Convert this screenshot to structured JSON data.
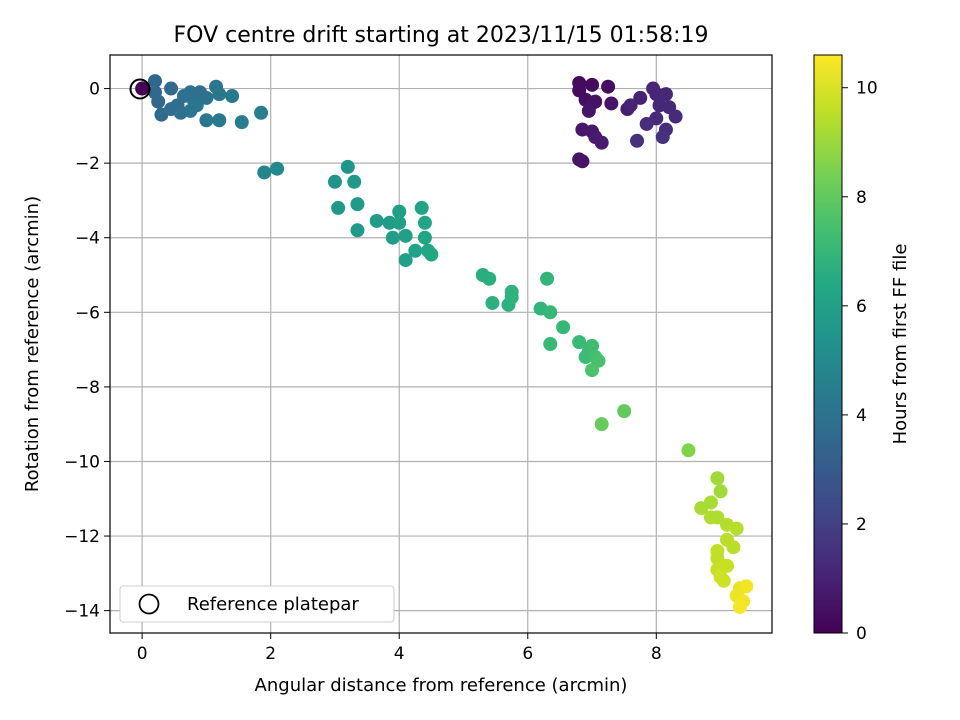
{
  "chart_data": {
    "type": "scatter",
    "title": "FOV centre drift starting at 2023/11/15 01:58:19",
    "xlabel": "Angular distance from reference (arcmin)",
    "ylabel": "Rotation from reference (arcmin)",
    "xlim": [
      -0.5,
      9.8
    ],
    "ylim": [
      -14.6,
      0.9
    ],
    "xticks": [
      0,
      2,
      4,
      6,
      8
    ],
    "yticks": [
      0,
      -2,
      -4,
      -6,
      -8,
      -10,
      -12,
      -14
    ],
    "grid": true,
    "legend": {
      "position": "lower-left",
      "entries": [
        "Reference platepar"
      ]
    },
    "colorbar": {
      "label": "Hours from first FF file",
      "colormap": "viridis",
      "range": [
        0,
        10.6
      ],
      "ticks": [
        0,
        2,
        4,
        6,
        8,
        10
      ]
    },
    "reference_point": {
      "x": 0,
      "y": 0
    },
    "points": [
      {
        "x": 0.0,
        "y": 0.0,
        "c": 0.0
      },
      {
        "x": 6.8,
        "y": 0.15,
        "c": 0.3
      },
      {
        "x": 7.0,
        "y": 0.1,
        "c": 0.3
      },
      {
        "x": 7.25,
        "y": 0.05,
        "c": 0.4
      },
      {
        "x": 6.8,
        "y": -0.05,
        "c": 0.3
      },
      {
        "x": 6.9,
        "y": -0.3,
        "c": 0.4
      },
      {
        "x": 7.0,
        "y": -0.4,
        "c": 0.5
      },
      {
        "x": 7.05,
        "y": -0.35,
        "c": 0.5
      },
      {
        "x": 6.95,
        "y": -0.6,
        "c": 0.6
      },
      {
        "x": 7.3,
        "y": -0.4,
        "c": 0.6
      },
      {
        "x": 6.85,
        "y": -1.1,
        "c": 0.7
      },
      {
        "x": 7.0,
        "y": -1.15,
        "c": 0.7
      },
      {
        "x": 7.05,
        "y": -1.3,
        "c": 0.8
      },
      {
        "x": 7.15,
        "y": -1.45,
        "c": 0.8
      },
      {
        "x": 6.8,
        "y": -1.9,
        "c": 0.6
      },
      {
        "x": 6.85,
        "y": -1.95,
        "c": 0.6
      },
      {
        "x": 7.55,
        "y": -0.55,
        "c": 0.9
      },
      {
        "x": 7.6,
        "y": -0.45,
        "c": 1.0
      },
      {
        "x": 7.75,
        "y": -0.25,
        "c": 1.0
      },
      {
        "x": 7.95,
        "y": 0.0,
        "c": 1.1
      },
      {
        "x": 8.0,
        "y": -0.15,
        "c": 1.1
      },
      {
        "x": 8.15,
        "y": -0.15,
        "c": 1.2
      },
      {
        "x": 8.05,
        "y": -0.45,
        "c": 1.2
      },
      {
        "x": 8.2,
        "y": -0.5,
        "c": 1.2
      },
      {
        "x": 8.3,
        "y": -0.75,
        "c": 1.3
      },
      {
        "x": 8.0,
        "y": -0.8,
        "c": 1.3
      },
      {
        "x": 7.85,
        "y": -0.95,
        "c": 1.4
      },
      {
        "x": 8.15,
        "y": -1.1,
        "c": 1.4
      },
      {
        "x": 8.1,
        "y": -1.3,
        "c": 1.5
      },
      {
        "x": 7.7,
        "y": -1.4,
        "c": 1.5
      },
      {
        "x": 0.2,
        "y": 0.2,
        "c": 3.5
      },
      {
        "x": 0.2,
        "y": -0.1,
        "c": 3.6
      },
      {
        "x": 0.25,
        "y": -0.35,
        "c": 3.6
      },
      {
        "x": 0.45,
        "y": 0.0,
        "c": 3.7
      },
      {
        "x": 0.3,
        "y": -0.7,
        "c": 3.7
      },
      {
        "x": 0.45,
        "y": -0.55,
        "c": 3.8
      },
      {
        "x": 0.55,
        "y": -0.45,
        "c": 3.8
      },
      {
        "x": 0.6,
        "y": -0.65,
        "c": 3.9
      },
      {
        "x": 0.65,
        "y": -0.2,
        "c": 3.9
      },
      {
        "x": 0.75,
        "y": -0.1,
        "c": 4.0
      },
      {
        "x": 0.8,
        "y": -0.3,
        "c": 4.0
      },
      {
        "x": 0.75,
        "y": -0.6,
        "c": 4.1
      },
      {
        "x": 0.85,
        "y": -0.45,
        "c": 4.1
      },
      {
        "x": 0.9,
        "y": -0.1,
        "c": 3.9
      },
      {
        "x": 1.0,
        "y": -0.25,
        "c": 4.0
      },
      {
        "x": 1.15,
        "y": 0.05,
        "c": 4.1
      },
      {
        "x": 1.2,
        "y": -0.15,
        "c": 4.2
      },
      {
        "x": 1.0,
        "y": -0.85,
        "c": 4.2
      },
      {
        "x": 1.2,
        "y": -0.85,
        "c": 4.3
      },
      {
        "x": 1.4,
        "y": -0.2,
        "c": 4.3
      },
      {
        "x": 1.55,
        "y": -0.9,
        "c": 4.4
      },
      {
        "x": 1.85,
        "y": -0.65,
        "c": 4.5
      },
      {
        "x": 1.9,
        "y": -2.25,
        "c": 4.8
      },
      {
        "x": 2.1,
        "y": -2.15,
        "c": 4.9
      },
      {
        "x": 3.2,
        "y": -2.1,
        "c": 5.5
      },
      {
        "x": 3.0,
        "y": -2.5,
        "c": 5.5
      },
      {
        "x": 3.3,
        "y": -2.5,
        "c": 5.6
      },
      {
        "x": 3.05,
        "y": -3.2,
        "c": 5.6
      },
      {
        "x": 3.35,
        "y": -3.1,
        "c": 5.7
      },
      {
        "x": 3.35,
        "y": -3.8,
        "c": 5.7
      },
      {
        "x": 3.65,
        "y": -3.55,
        "c": 5.8
      },
      {
        "x": 3.85,
        "y": -3.6,
        "c": 5.8
      },
      {
        "x": 3.9,
        "y": -4.0,
        "c": 5.9
      },
      {
        "x": 4.0,
        "y": -3.3,
        "c": 5.9
      },
      {
        "x": 4.0,
        "y": -3.6,
        "c": 6.0
      },
      {
        "x": 4.1,
        "y": -3.95,
        "c": 6.0
      },
      {
        "x": 4.1,
        "y": -4.6,
        "c": 6.0
      },
      {
        "x": 4.25,
        "y": -4.35,
        "c": 6.1
      },
      {
        "x": 4.35,
        "y": -3.2,
        "c": 6.1
      },
      {
        "x": 4.4,
        "y": -3.6,
        "c": 6.2
      },
      {
        "x": 4.4,
        "y": -4.0,
        "c": 6.2
      },
      {
        "x": 4.45,
        "y": -4.35,
        "c": 6.3
      },
      {
        "x": 4.5,
        "y": -4.45,
        "c": 6.3
      },
      {
        "x": 5.3,
        "y": -5.0,
        "c": 6.6
      },
      {
        "x": 5.4,
        "y": -5.1,
        "c": 6.6
      },
      {
        "x": 5.45,
        "y": -5.75,
        "c": 6.7
      },
      {
        "x": 5.7,
        "y": -5.8,
        "c": 6.7
      },
      {
        "x": 5.75,
        "y": -5.45,
        "c": 6.8
      },
      {
        "x": 5.75,
        "y": -5.6,
        "c": 6.8
      },
      {
        "x": 6.3,
        "y": -5.1,
        "c": 6.9
      },
      {
        "x": 6.2,
        "y": -5.9,
        "c": 6.9
      },
      {
        "x": 6.35,
        "y": -6.0,
        "c": 7.0
      },
      {
        "x": 6.55,
        "y": -6.4,
        "c": 7.0
      },
      {
        "x": 6.35,
        "y": -6.85,
        "c": 7.1
      },
      {
        "x": 6.8,
        "y": -6.8,
        "c": 7.1
      },
      {
        "x": 6.9,
        "y": -7.2,
        "c": 7.2
      },
      {
        "x": 6.95,
        "y": -7.05,
        "c": 7.2
      },
      {
        "x": 7.0,
        "y": -6.9,
        "c": 7.3
      },
      {
        "x": 7.05,
        "y": -7.2,
        "c": 7.4
      },
      {
        "x": 7.1,
        "y": -7.3,
        "c": 7.5
      },
      {
        "x": 7.0,
        "y": -7.55,
        "c": 7.6
      },
      {
        "x": 7.5,
        "y": -8.65,
        "c": 8.0
      },
      {
        "x": 7.15,
        "y": -9.0,
        "c": 8.1
      },
      {
        "x": 8.5,
        "y": -9.7,
        "c": 8.6
      },
      {
        "x": 8.95,
        "y": -10.45,
        "c": 9.1
      },
      {
        "x": 9.0,
        "y": -10.8,
        "c": 9.1
      },
      {
        "x": 8.85,
        "y": -11.1,
        "c": 9.2
      },
      {
        "x": 8.7,
        "y": -11.25,
        "c": 9.2
      },
      {
        "x": 8.85,
        "y": -11.5,
        "c": 9.3
      },
      {
        "x": 8.95,
        "y": -11.5,
        "c": 9.3
      },
      {
        "x": 9.1,
        "y": -11.7,
        "c": 9.4
      },
      {
        "x": 9.25,
        "y": -11.8,
        "c": 9.4
      },
      {
        "x": 9.1,
        "y": -12.1,
        "c": 9.5
      },
      {
        "x": 9.2,
        "y": -12.3,
        "c": 9.5
      },
      {
        "x": 8.95,
        "y": -12.4,
        "c": 9.6
      },
      {
        "x": 8.95,
        "y": -12.6,
        "c": 9.6
      },
      {
        "x": 9.1,
        "y": -12.8,
        "c": 9.7
      },
      {
        "x": 8.95,
        "y": -12.9,
        "c": 9.7
      },
      {
        "x": 9.0,
        "y": -13.1,
        "c": 9.8
      },
      {
        "x": 9.05,
        "y": -13.2,
        "c": 9.8
      },
      {
        "x": 9.3,
        "y": -13.4,
        "c": 10.2
      },
      {
        "x": 9.25,
        "y": -13.6,
        "c": 10.3
      },
      {
        "x": 9.35,
        "y": -13.75,
        "c": 10.4
      },
      {
        "x": 9.3,
        "y": -13.9,
        "c": 10.5
      },
      {
        "x": 9.4,
        "y": -13.35,
        "c": 10.4
      }
    ]
  }
}
